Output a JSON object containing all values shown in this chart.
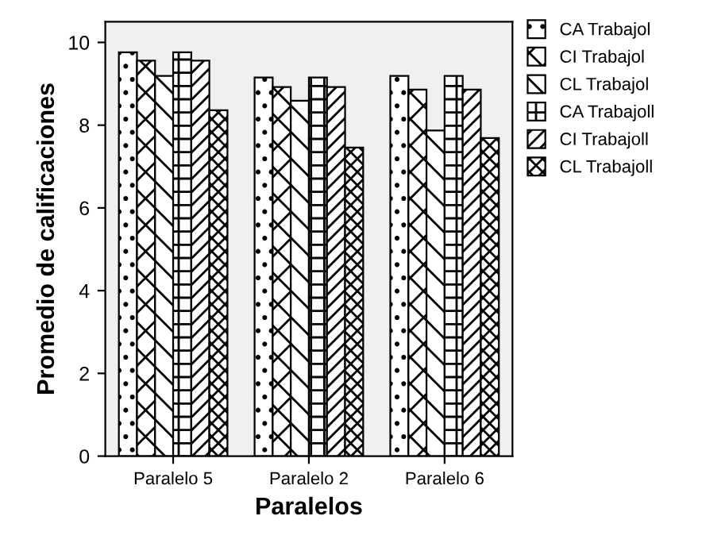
{
  "chart_data": {
    "type": "bar",
    "xlabel": "Paralelos",
    "ylabel": "Promedio de calificaciones",
    "categories": [
      "Paralelo 5",
      "Paralelo 2",
      "Paralelo 6"
    ],
    "series": [
      {
        "name": "CA Trabajol",
        "values": [
          9.76,
          9.15,
          9.19
        ]
      },
      {
        "name": "CI Trabajol",
        "values": [
          9.56,
          8.92,
          8.86
        ]
      },
      {
        "name": "CL Trabajol",
        "values": [
          9.19,
          8.59,
          7.87
        ]
      },
      {
        "name": "CA Trabajoll",
        "values": [
          9.76,
          9.15,
          9.19
        ]
      },
      {
        "name": "CI Trabajoll",
        "values": [
          9.56,
          8.92,
          8.86
        ]
      },
      {
        "name": "CL Trabajoll",
        "values": [
          8.36,
          7.46,
          7.69
        ]
      }
    ],
    "ylim": [
      0,
      10.5
    ],
    "yticks": [
      0,
      2,
      4,
      6,
      8,
      10
    ],
    "grid": false,
    "legend": "right"
  }
}
